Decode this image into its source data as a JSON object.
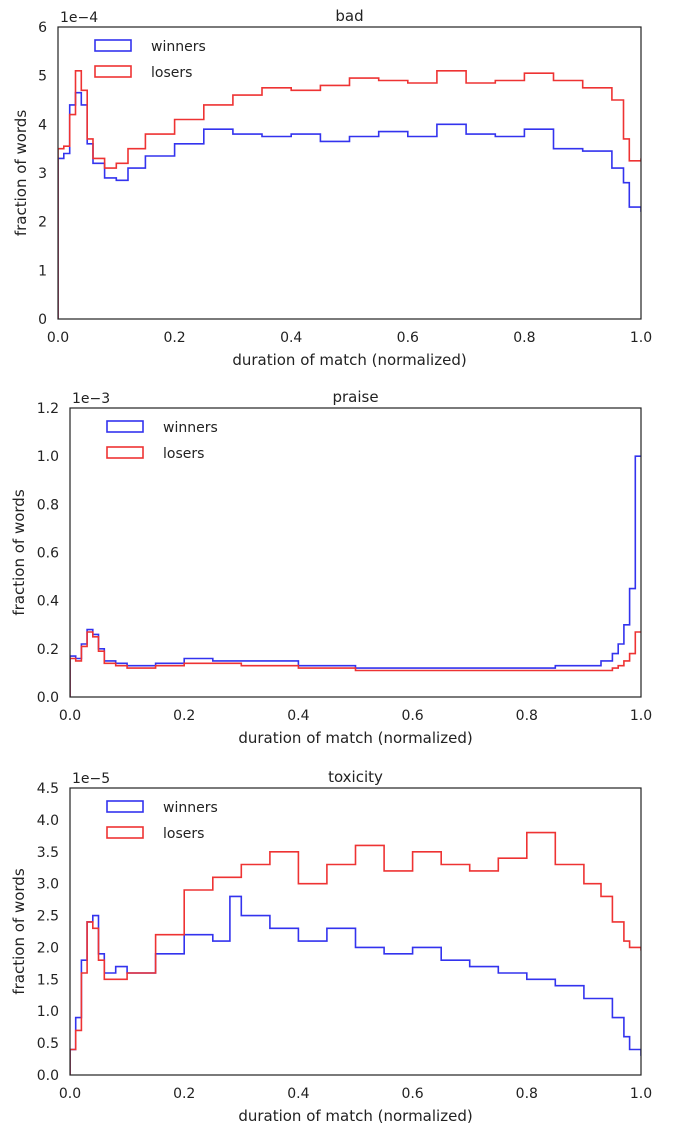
{
  "chart_data": [
    {
      "type": "line",
      "drawstyle": "steps",
      "title": "bad",
      "xlabel": "duration of match (normalized)",
      "ylabel": "fraction of words",
      "scale_label": "1e−4",
      "xlim": [
        0.0,
        1.0
      ],
      "ylim": [
        0,
        6
      ],
      "xticks": [
        "0.0",
        "0.2",
        "0.4",
        "0.6",
        "0.8",
        "1.0"
      ],
      "yticks": [
        "0",
        "1",
        "2",
        "3",
        "4",
        "5",
        "6"
      ],
      "legend": "top-left",
      "grid": false,
      "x": [
        0.0,
        0.1,
        0.2,
        0.3,
        0.4,
        0.5,
        0.6,
        0.7,
        0.8,
        0.9,
        1.0
      ],
      "series": [
        {
          "name": "winners",
          "color": "#3333ee",
          "x": [
            0.0,
            0.01,
            0.02,
            0.03,
            0.04,
            0.05,
            0.06,
            0.08,
            0.1,
            0.12,
            0.15,
            0.2,
            0.25,
            0.3,
            0.35,
            0.4,
            0.45,
            0.5,
            0.55,
            0.6,
            0.65,
            0.7,
            0.75,
            0.8,
            0.85,
            0.9,
            0.95,
            0.97,
            0.98,
            1.0
          ],
          "values": [
            3.3,
            3.4,
            4.4,
            4.65,
            4.4,
            3.6,
            3.2,
            2.9,
            2.85,
            3.1,
            3.35,
            3.6,
            3.9,
            3.8,
            3.75,
            3.8,
            3.65,
            3.75,
            3.85,
            3.75,
            4.0,
            3.8,
            3.75,
            3.9,
            3.5,
            3.45,
            3.1,
            2.8,
            2.3,
            2.2
          ]
        },
        {
          "name": "losers",
          "color": "#ee3333",
          "x": [
            0.0,
            0.01,
            0.02,
            0.03,
            0.04,
            0.05,
            0.06,
            0.08,
            0.1,
            0.12,
            0.15,
            0.2,
            0.25,
            0.3,
            0.35,
            0.4,
            0.45,
            0.5,
            0.55,
            0.6,
            0.65,
            0.7,
            0.75,
            0.8,
            0.85,
            0.9,
            0.95,
            0.97,
            0.98,
            1.0
          ],
          "values": [
            3.5,
            3.55,
            4.2,
            5.1,
            4.7,
            3.7,
            3.3,
            3.1,
            3.2,
            3.5,
            3.8,
            4.1,
            4.4,
            4.6,
            4.75,
            4.7,
            4.8,
            4.95,
            4.9,
            4.85,
            5.1,
            4.85,
            4.9,
            5.05,
            4.9,
            4.75,
            4.5,
            3.7,
            3.25,
            3.3
          ]
        }
      ]
    },
    {
      "type": "line",
      "drawstyle": "steps",
      "title": "praise",
      "xlabel": "duration of match (normalized)",
      "ylabel": "fraction of words",
      "scale_label": "1e−3",
      "xlim": [
        0.0,
        1.0
      ],
      "ylim": [
        0.0,
        1.2
      ],
      "xticks": [
        "0.0",
        "0.2",
        "0.4",
        "0.6",
        "0.8",
        "1.0"
      ],
      "yticks": [
        "0.0",
        "0.2",
        "0.4",
        "0.6",
        "0.8",
        "1.0",
        "1.2"
      ],
      "legend": "top-left",
      "grid": false,
      "series": [
        {
          "name": "winners",
          "color": "#3333ee",
          "x": [
            0.0,
            0.01,
            0.02,
            0.03,
            0.04,
            0.05,
            0.06,
            0.08,
            0.1,
            0.15,
            0.2,
            0.25,
            0.3,
            0.4,
            0.5,
            0.6,
            0.7,
            0.8,
            0.85,
            0.9,
            0.93,
            0.95,
            0.96,
            0.97,
            0.98,
            0.99,
            1.0
          ],
          "values": [
            0.17,
            0.16,
            0.22,
            0.28,
            0.26,
            0.2,
            0.15,
            0.14,
            0.13,
            0.14,
            0.16,
            0.15,
            0.15,
            0.13,
            0.12,
            0.12,
            0.12,
            0.12,
            0.13,
            0.13,
            0.15,
            0.18,
            0.22,
            0.3,
            0.45,
            1.0,
            1.0
          ]
        },
        {
          "name": "losers",
          "color": "#ee3333",
          "x": [
            0.0,
            0.01,
            0.02,
            0.03,
            0.04,
            0.05,
            0.06,
            0.08,
            0.1,
            0.15,
            0.2,
            0.25,
            0.3,
            0.4,
            0.5,
            0.6,
            0.7,
            0.8,
            0.85,
            0.9,
            0.93,
            0.95,
            0.96,
            0.97,
            0.98,
            0.99,
            1.0
          ],
          "values": [
            0.16,
            0.15,
            0.21,
            0.27,
            0.25,
            0.19,
            0.14,
            0.13,
            0.12,
            0.13,
            0.14,
            0.14,
            0.13,
            0.12,
            0.11,
            0.11,
            0.11,
            0.11,
            0.11,
            0.11,
            0.11,
            0.12,
            0.13,
            0.15,
            0.18,
            0.27,
            0.27
          ]
        }
      ]
    },
    {
      "type": "line",
      "drawstyle": "steps",
      "title": "toxicity",
      "xlabel": "duration of match (normalized)",
      "ylabel": "fraction of words",
      "scale_label": "1e−5",
      "xlim": [
        0.0,
        1.0
      ],
      "ylim": [
        0.0,
        4.5
      ],
      "xticks": [
        "0.0",
        "0.2",
        "0.4",
        "0.6",
        "0.8",
        "1.0"
      ],
      "yticks": [
        "0.0",
        "0.5",
        "1.0",
        "1.5",
        "2.0",
        "2.5",
        "3.0",
        "3.5",
        "4.0",
        "4.5"
      ],
      "legend": "top-left",
      "grid": false,
      "series": [
        {
          "name": "winners",
          "color": "#3333ee",
          "x": [
            0.0,
            0.01,
            0.02,
            0.03,
            0.04,
            0.05,
            0.06,
            0.08,
            0.1,
            0.15,
            0.2,
            0.25,
            0.28,
            0.3,
            0.35,
            0.4,
            0.45,
            0.5,
            0.55,
            0.6,
            0.65,
            0.7,
            0.75,
            0.8,
            0.85,
            0.9,
            0.95,
            0.97,
            0.98,
            1.0
          ],
          "values": [
            0.4,
            0.9,
            1.8,
            2.4,
            2.5,
            1.9,
            1.6,
            1.7,
            1.6,
            1.9,
            2.2,
            2.1,
            2.8,
            2.5,
            2.3,
            2.1,
            2.3,
            2.0,
            1.9,
            2.0,
            1.8,
            1.7,
            1.6,
            1.5,
            1.4,
            1.2,
            0.9,
            0.6,
            0.4,
            0.3
          ]
        },
        {
          "name": "losers",
          "color": "#ee3333",
          "x": [
            0.0,
            0.01,
            0.02,
            0.03,
            0.04,
            0.05,
            0.06,
            0.08,
            0.1,
            0.15,
            0.2,
            0.25,
            0.3,
            0.35,
            0.4,
            0.45,
            0.5,
            0.55,
            0.6,
            0.65,
            0.7,
            0.75,
            0.8,
            0.85,
            0.9,
            0.93,
            0.95,
            0.97,
            0.98,
            1.0
          ],
          "values": [
            0.4,
            0.7,
            1.6,
            2.4,
            2.3,
            1.8,
            1.5,
            1.5,
            1.6,
            2.2,
            2.9,
            3.1,
            3.3,
            3.5,
            3.0,
            3.3,
            3.6,
            3.2,
            3.5,
            3.3,
            3.2,
            3.4,
            3.8,
            3.3,
            3.0,
            2.8,
            2.4,
            2.1,
            2.0,
            1.95
          ]
        }
      ]
    }
  ]
}
